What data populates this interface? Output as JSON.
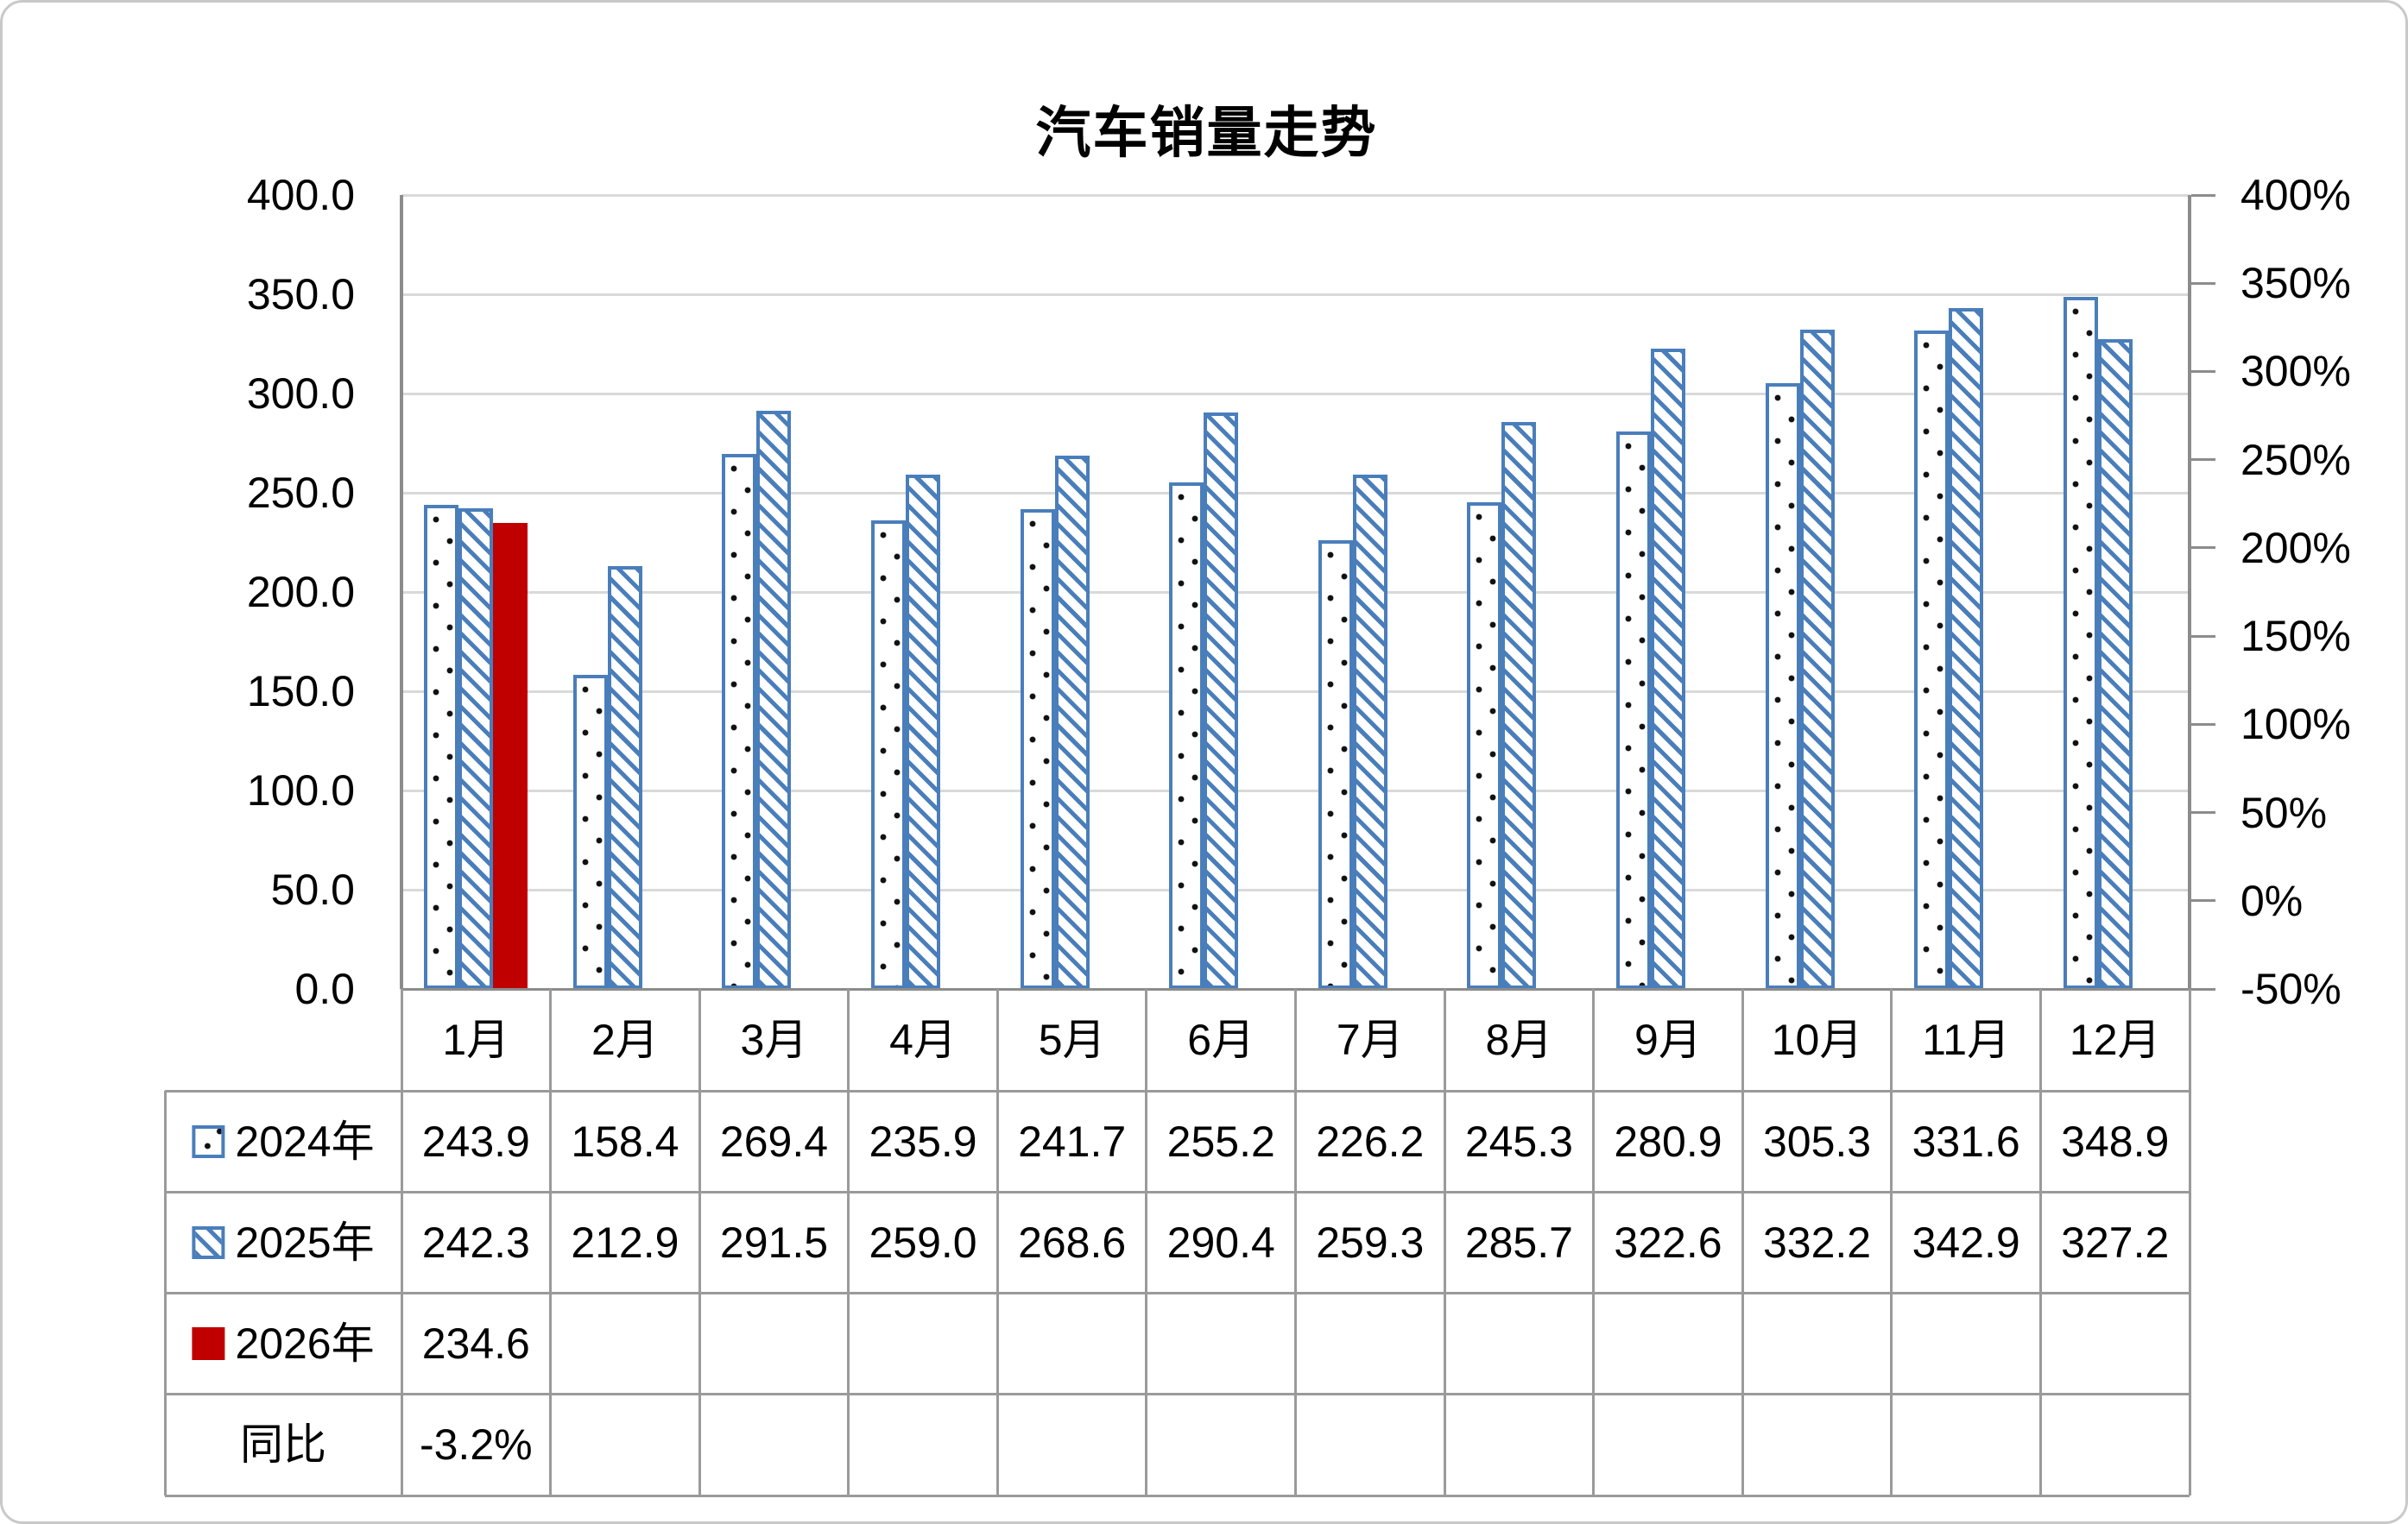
{
  "title": "汽车销量走势",
  "colors": {
    "series_blue": "#4A7EBB",
    "series_red": "#C00000",
    "gridline": "#D9D9D9",
    "axis_line": "#8C8C8C",
    "table_line": "#9A9A9A",
    "text": "#000000"
  },
  "chart_data": {
    "type": "bar",
    "title": "汽车销量走势",
    "categories": [
      "1月",
      "2月",
      "3月",
      "4月",
      "5月",
      "6月",
      "7月",
      "8月",
      "9月",
      "10月",
      "11月",
      "12月"
    ],
    "series": [
      {
        "name": "2024年",
        "style": "dots",
        "values": [
          243.9,
          158.4,
          269.4,
          235.9,
          241.7,
          255.2,
          226.2,
          245.3,
          280.9,
          305.3,
          331.6,
          348.9
        ]
      },
      {
        "name": "2025年",
        "style": "hatch",
        "values": [
          242.3,
          212.9,
          291.5,
          259.0,
          268.6,
          290.4,
          259.3,
          285.7,
          322.6,
          332.2,
          342.9,
          327.2
        ]
      },
      {
        "name": "2026年",
        "style": "solid-red",
        "values": [
          234.6,
          null,
          null,
          null,
          null,
          null,
          null,
          null,
          null,
          null,
          null,
          null
        ]
      }
    ],
    "extra_rows": [
      {
        "name": "同比",
        "values": [
          "-3.2%",
          "",
          "",
          "",
          "",
          "",
          "",
          "",
          "",
          "",
          "",
          ""
        ]
      }
    ],
    "left_axis": {
      "min": 0,
      "max": 400,
      "step": 50,
      "tick_labels": [
        "400.0",
        "350.0",
        "300.0",
        "250.0",
        "200.0",
        "150.0",
        "100.0",
        "50.0",
        "0.0"
      ]
    },
    "right_axis": {
      "min": -50,
      "max": 400,
      "step": 50,
      "tick_labels": [
        "400%",
        "350%",
        "300%",
        "250%",
        "200%",
        "150%",
        "100%",
        "50%",
        "0%",
        "-50%"
      ]
    },
    "grid": true,
    "legend_position": "table-left-column",
    "value_format": "one-decimal"
  }
}
